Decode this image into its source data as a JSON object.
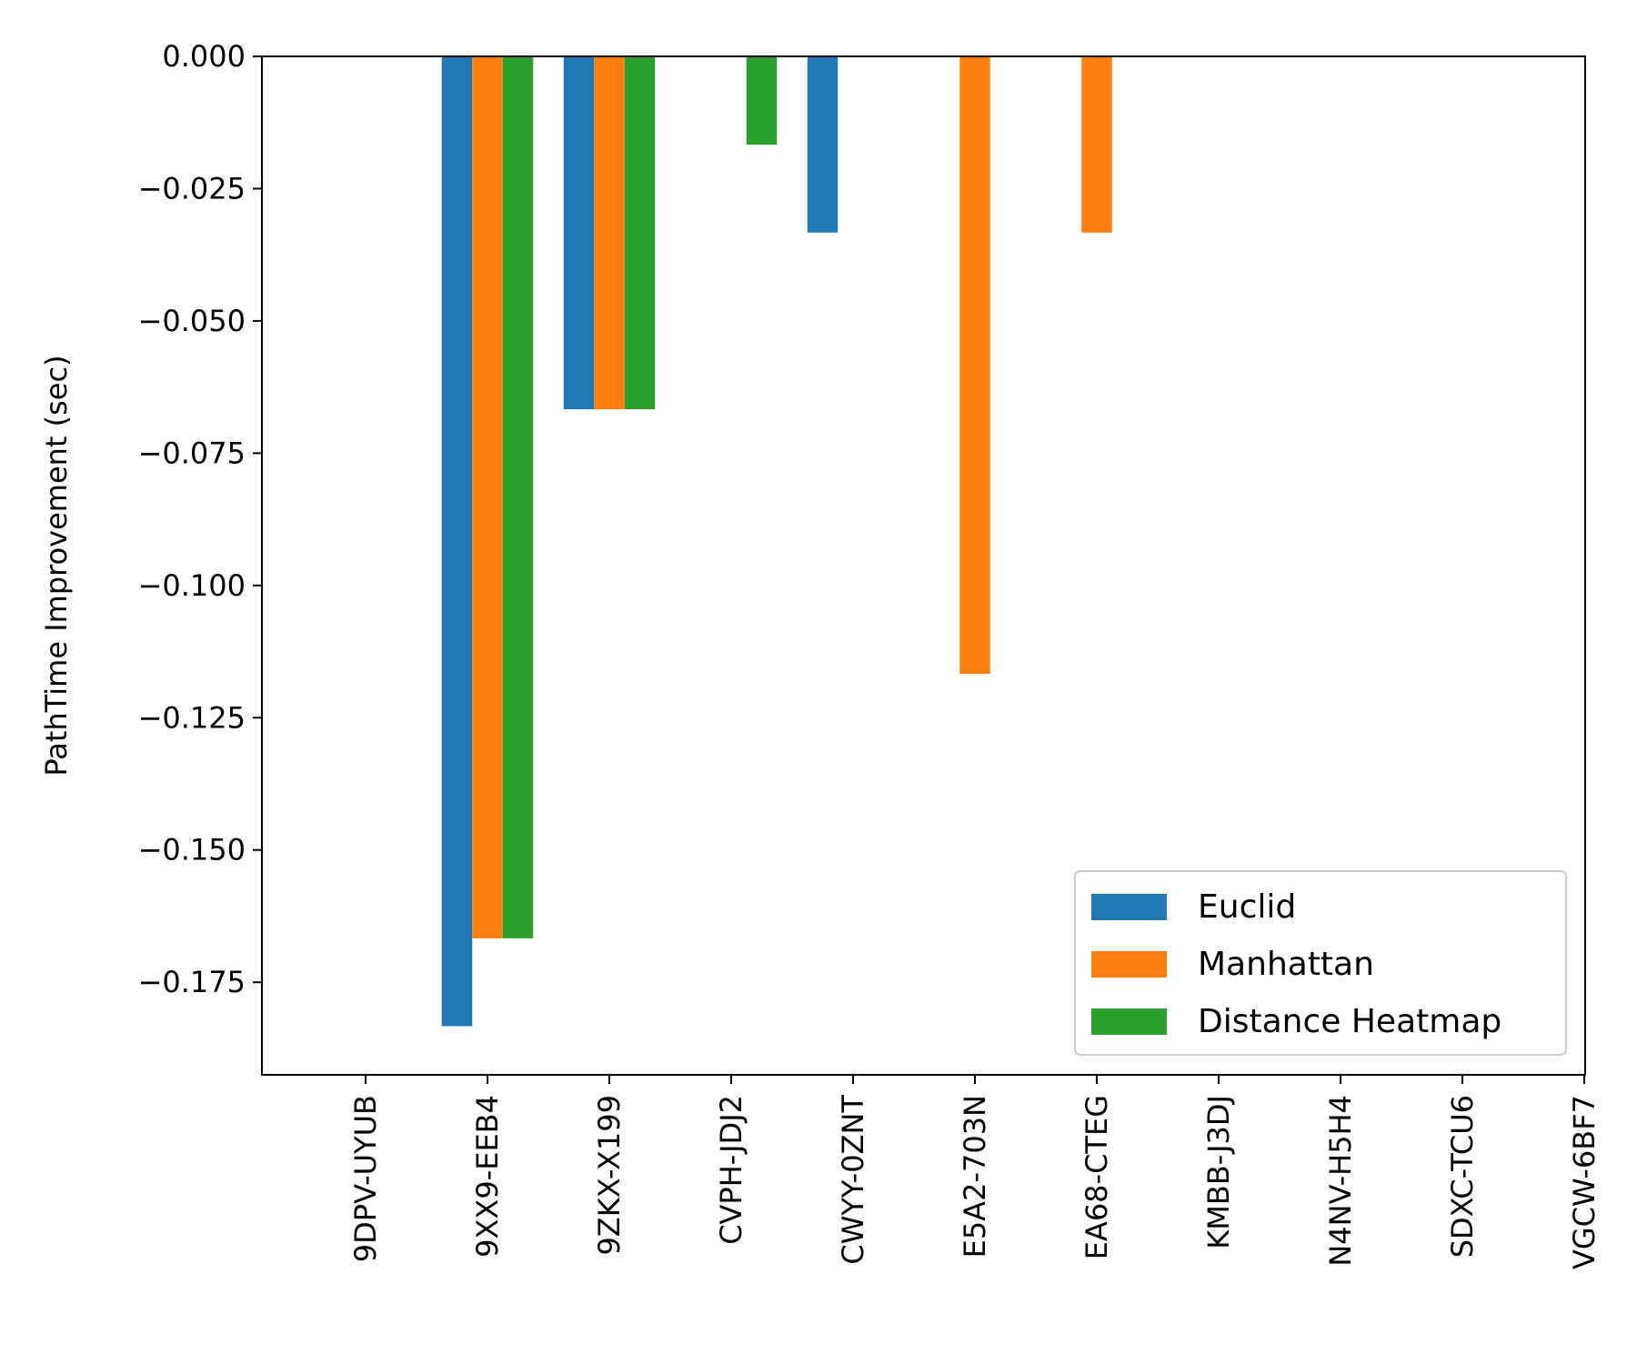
{
  "chart_data": {
    "type": "bar",
    "title": "",
    "xlabel": "",
    "ylabel": "PathTime Improvement (sec)",
    "categories": [
      "9DPV-UYUB",
      "9XX9-EEB4",
      "9ZKX-X199",
      "CVPH-JDJ2",
      "CWYY-0ZNT",
      "E5A2-703N",
      "EA68-CTEG",
      "KMBB-J3DJ",
      "N4NV-H5H4",
      "SDXC-TCU6",
      "VGCW-6BF7"
    ],
    "series": [
      {
        "name": "Euclid",
        "color": "#1f77b4",
        "values": [
          0,
          -0.1833,
          -0.0667,
          0,
          -0.0333,
          0,
          0,
          0,
          0,
          0,
          0
        ]
      },
      {
        "name": "Manhattan",
        "color": "#ff7f0e",
        "values": [
          0,
          -0.1667,
          -0.0667,
          0,
          0,
          -0.1167,
          -0.0333,
          0,
          0,
          0,
          0
        ]
      },
      {
        "name": "Distance Heatmap",
        "color": "#2ca02c",
        "values": [
          0,
          -0.1667,
          -0.0667,
          -0.0167,
          0,
          0,
          0,
          0,
          0,
          0,
          0
        ]
      }
    ],
    "ylim": [
      -0.1925,
      0.0
    ],
    "yticks": [
      0.0,
      -0.025,
      -0.05,
      -0.075,
      -0.1,
      -0.125,
      -0.15,
      -0.175
    ],
    "ytick_labels": [
      "0.000",
      "−0.025",
      "−0.050",
      "−0.075",
      "−0.100",
      "−0.125",
      "−0.150",
      "−0.175"
    ],
    "legend_position": "lower-right",
    "grid": false
  }
}
